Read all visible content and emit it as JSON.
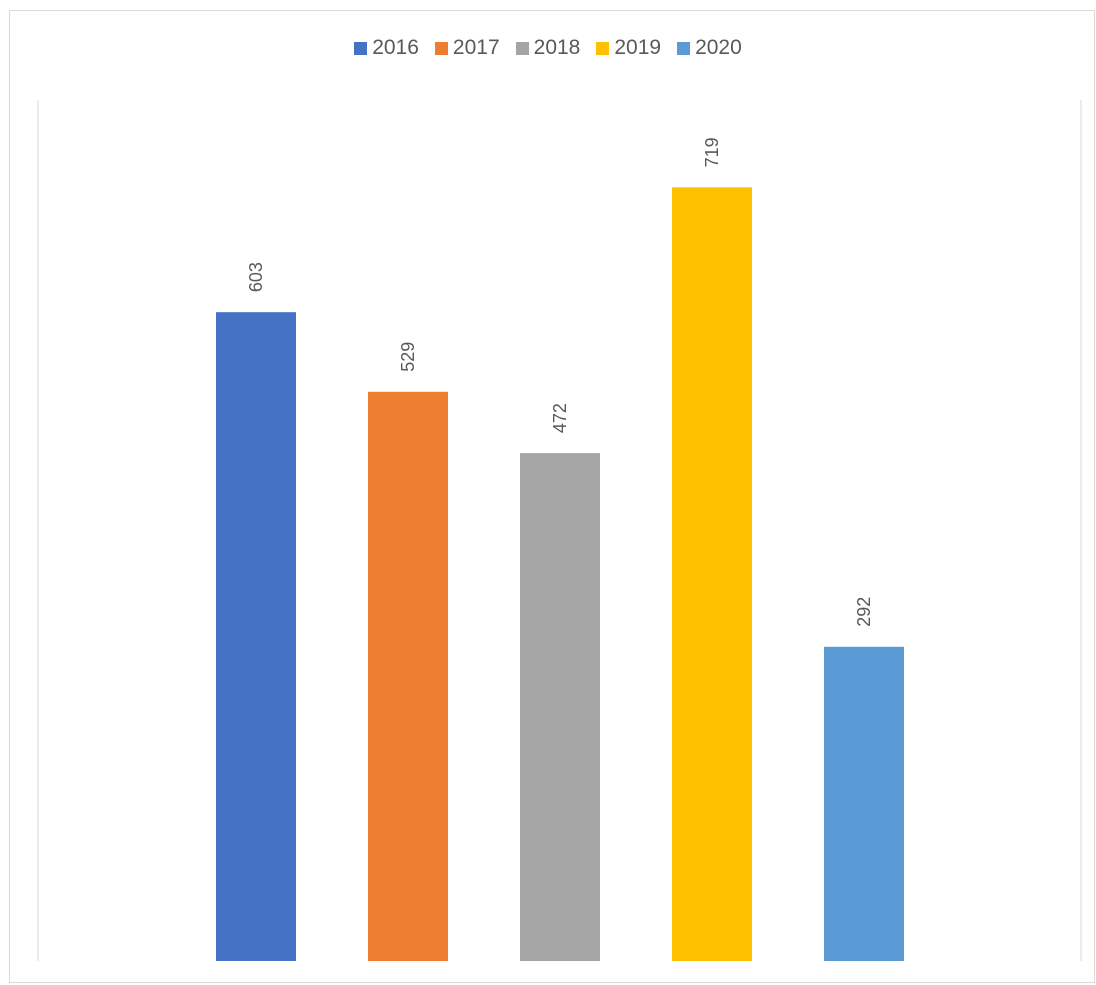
{
  "chart_data": {
    "type": "bar",
    "title": "",
    "xlabel": "",
    "ylabel": "",
    "ylim": [
      0,
      750
    ],
    "grid": false,
    "legend_position": "top",
    "categories": [
      ""
    ],
    "series": [
      {
        "name": "2016",
        "values": [
          603
        ],
        "color": "#4472C4"
      },
      {
        "name": "2017",
        "values": [
          529
        ],
        "color": "#ED7D31"
      },
      {
        "name": "2018",
        "values": [
          472
        ],
        "color": "#A5A5A5"
      },
      {
        "name": "2019",
        "values": [
          719
        ],
        "color": "#FFC000"
      },
      {
        "name": "2020",
        "values": [
          292
        ],
        "color": "#5B9BD5"
      }
    ]
  }
}
